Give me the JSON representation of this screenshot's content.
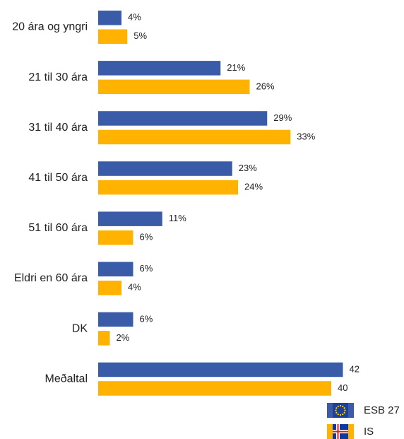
{
  "chart_data": {
    "type": "bar",
    "orientation": "horizontal",
    "categories": [
      "20 ára og yngri",
      "21 til 30 ára",
      "31 til 40 ára",
      "41 til 50 ára",
      "51 til 60 ára",
      "Eldri en 60 ára",
      "DK",
      "Meðaltal"
    ],
    "series": [
      {
        "name": "ESB 27",
        "color": "#3a5ba7",
        "values": [
          4,
          21,
          29,
          23,
          11,
          6,
          6,
          42
        ],
        "value_labels": [
          "4%",
          "21%",
          "29%",
          "23%",
          "11%",
          "6%",
          "6%",
          "42"
        ]
      },
      {
        "name": "IS",
        "color": "#ffb300",
        "values": [
          5,
          26,
          33,
          24,
          6,
          4,
          2,
          40
        ],
        "value_labels": [
          "5%",
          "26%",
          "33%",
          "24%",
          "6%",
          "4%",
          "2%",
          "40"
        ]
      }
    ],
    "legend": "bottom-right"
  }
}
